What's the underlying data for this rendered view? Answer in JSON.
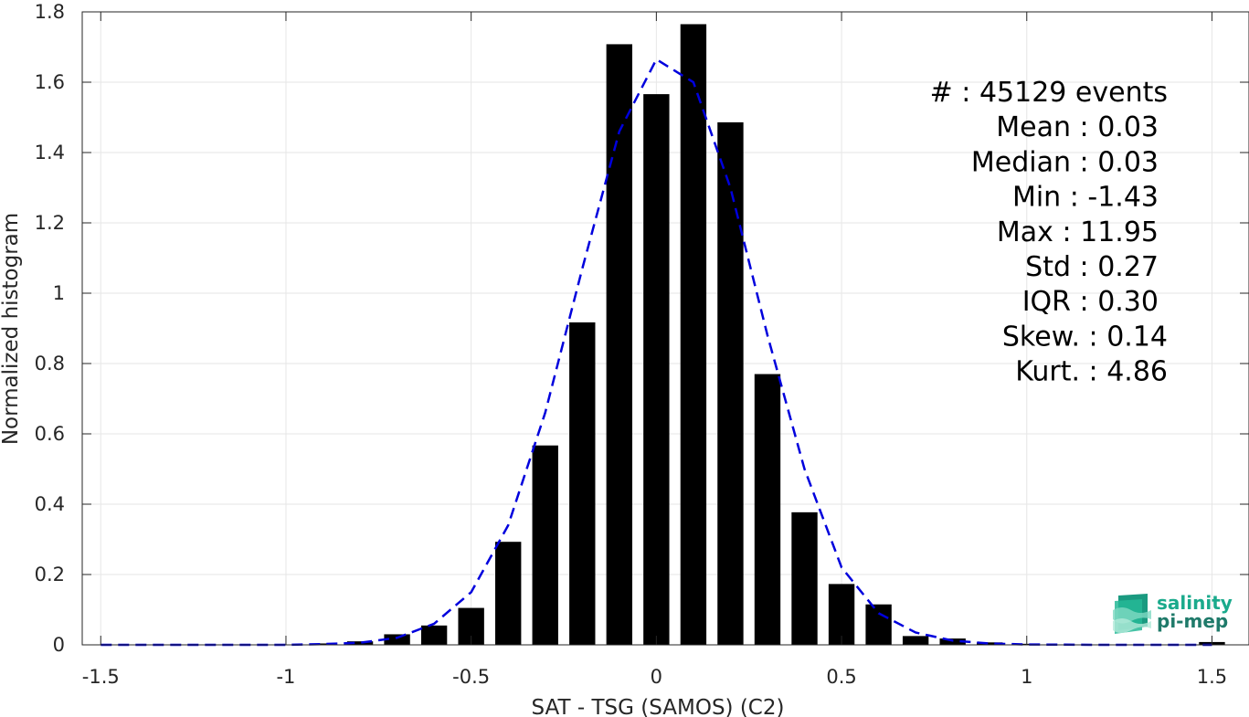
{
  "chart_data": {
    "type": "bar",
    "xlabel": "SAT - TSG (SAMOS) (C2)",
    "ylabel": "Normalized histogram",
    "xlim": [
      -1.55,
      1.6
    ],
    "ylim": [
      0,
      1.8
    ],
    "grid": true,
    "x_ticks": [
      -1.5,
      -1,
      -0.5,
      0,
      0.5,
      1,
      1.5
    ],
    "x_tick_labels": [
      "-1.5",
      "-1",
      "-0.5",
      "0",
      "0.5",
      "1",
      "1.5"
    ],
    "y_ticks": [
      0,
      0.2,
      0.4,
      0.6,
      0.8,
      1,
      1.2,
      1.4,
      1.6,
      1.8
    ],
    "y_tick_labels": [
      "0",
      "0.2",
      "0.4",
      "0.6",
      "0.8",
      "1",
      "1.2",
      "1.4",
      "1.6",
      "1.8"
    ],
    "bar_width": 0.07,
    "bars": {
      "x": [
        -0.9,
        -0.8,
        -0.7,
        -0.6,
        -0.5,
        -0.4,
        -0.3,
        -0.2,
        -0.1,
        0.0,
        0.1,
        0.2,
        0.3,
        0.4,
        0.5,
        0.6,
        0.7,
        0.8,
        0.9,
        1.0,
        1.5
      ],
      "values": [
        0.004,
        0.01,
        0.03,
        0.055,
        0.105,
        0.293,
        0.567,
        0.917,
        1.708,
        1.566,
        1.765,
        1.486,
        0.77,
        0.377,
        0.173,
        0.115,
        0.025,
        0.018,
        0.007,
        0.003,
        0.008
      ],
      "color": "#000000"
    },
    "fit_curve": {
      "style": "dashed",
      "color": "#0000dd",
      "x": [
        -1.5,
        -1.2,
        -1.0,
        -0.9,
        -0.8,
        -0.7,
        -0.6,
        -0.5,
        -0.4,
        -0.3,
        -0.2,
        -0.1,
        0.0,
        0.1,
        0.2,
        0.3,
        0.4,
        0.5,
        0.6,
        0.7,
        0.8,
        0.9,
        1.0,
        1.2,
        1.5
      ],
      "y": [
        0.0,
        0.0,
        0.0,
        0.002,
        0.006,
        0.02,
        0.06,
        0.15,
        0.34,
        0.66,
        1.07,
        1.46,
        1.665,
        1.6,
        1.3,
        0.88,
        0.5,
        0.22,
        0.09,
        0.035,
        0.012,
        0.004,
        0.001,
        0.0,
        0.0
      ]
    },
    "annotations": [
      "#  : 45129 events",
      "Mean : 0.03",
      "Median : 0.03",
      "Min : -1.43",
      "Max : 11.95",
      "Std : 0.27",
      "IQR : 0.30",
      "Skew. : 0.14",
      "Kurt. : 4.86"
    ]
  },
  "logo": {
    "line1": "salinity",
    "line2": "pi-mep",
    "color1": "#1aaa8c",
    "color2": "#1f7a6a"
  }
}
